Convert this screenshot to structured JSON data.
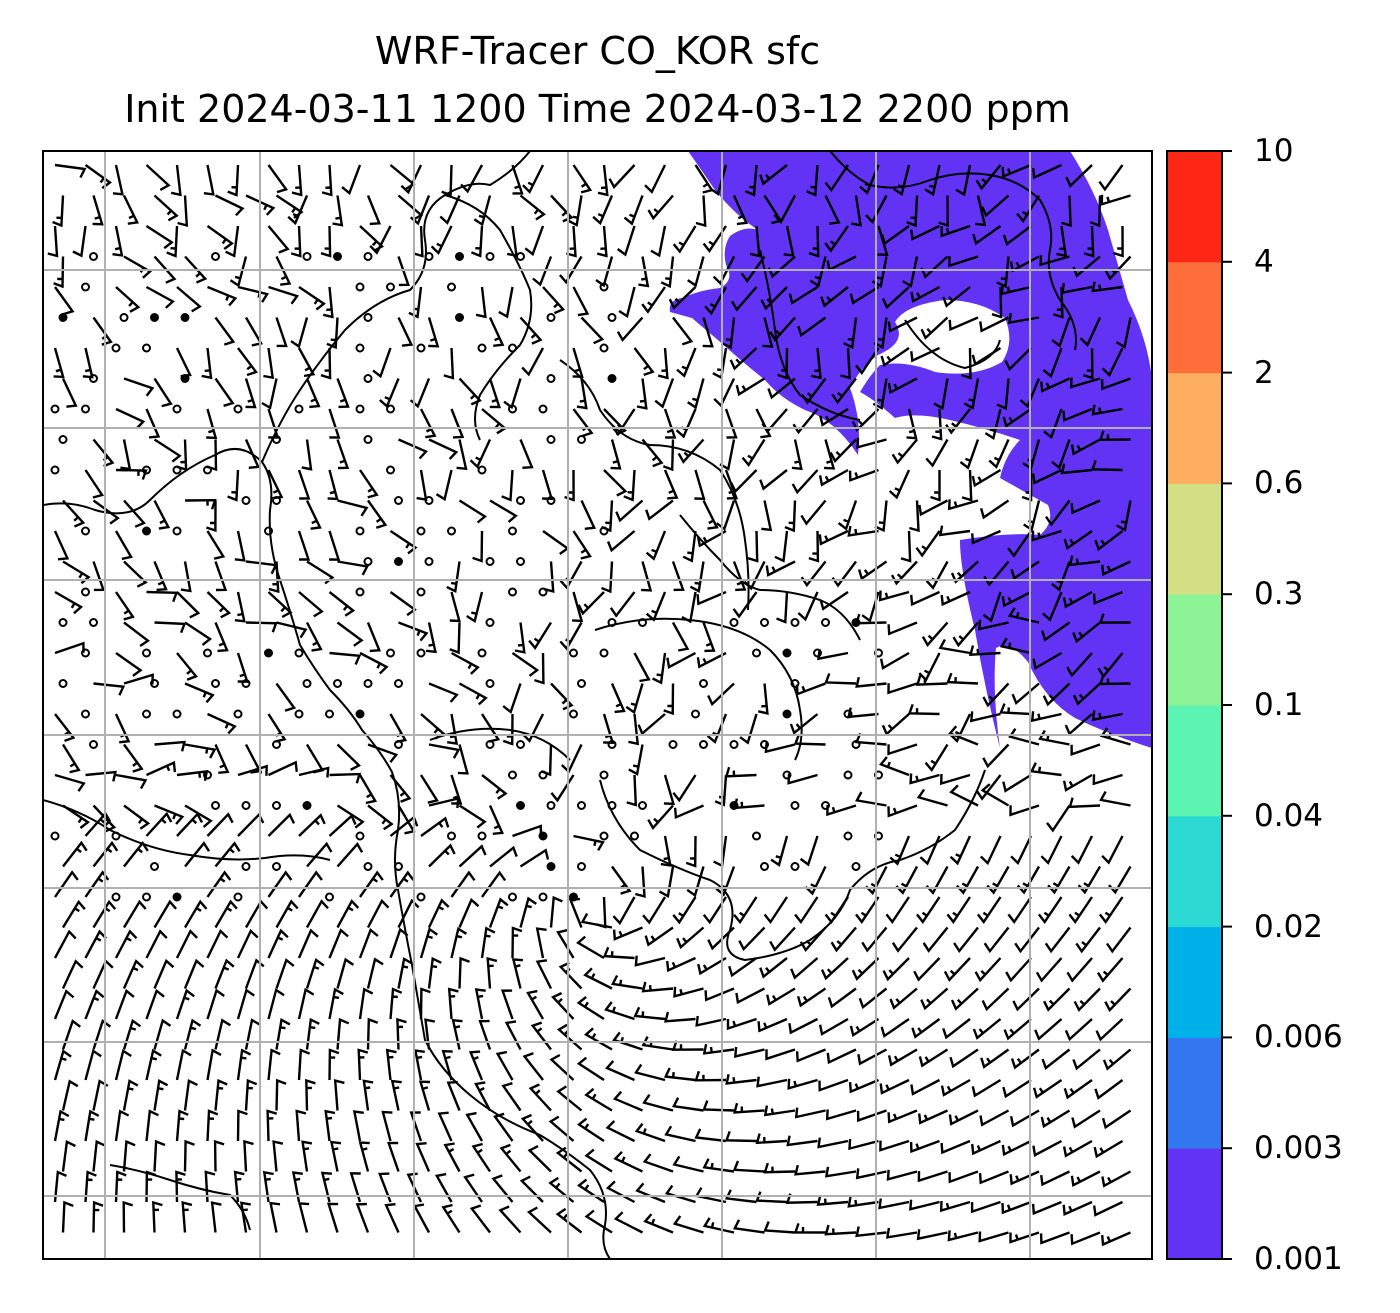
{
  "title": {
    "line1": "WRF-Tracer CO_KOR sfc",
    "line2": "Init 2024-03-11 1200 Time 2024-03-12 2200 ppm"
  },
  "colorbar": {
    "levels": [
      "0.001",
      "0.003",
      "0.006",
      "0.02",
      "0.04",
      "0.1",
      "0.3",
      "0.6",
      "2",
      "4",
      "10"
    ],
    "colors": [
      "#6232f5",
      "#3277ef",
      "#00b0e8",
      "#2cd9d3",
      "#5bf4b0",
      "#8cf497",
      "#d3df84",
      "#fdaf5f",
      "#ff6e3a",
      "#fe2716"
    ]
  },
  "map": {
    "tracer_fill_color": "#6232f5",
    "gridlines": true,
    "wind_barbs": true,
    "coastlines": true
  }
}
